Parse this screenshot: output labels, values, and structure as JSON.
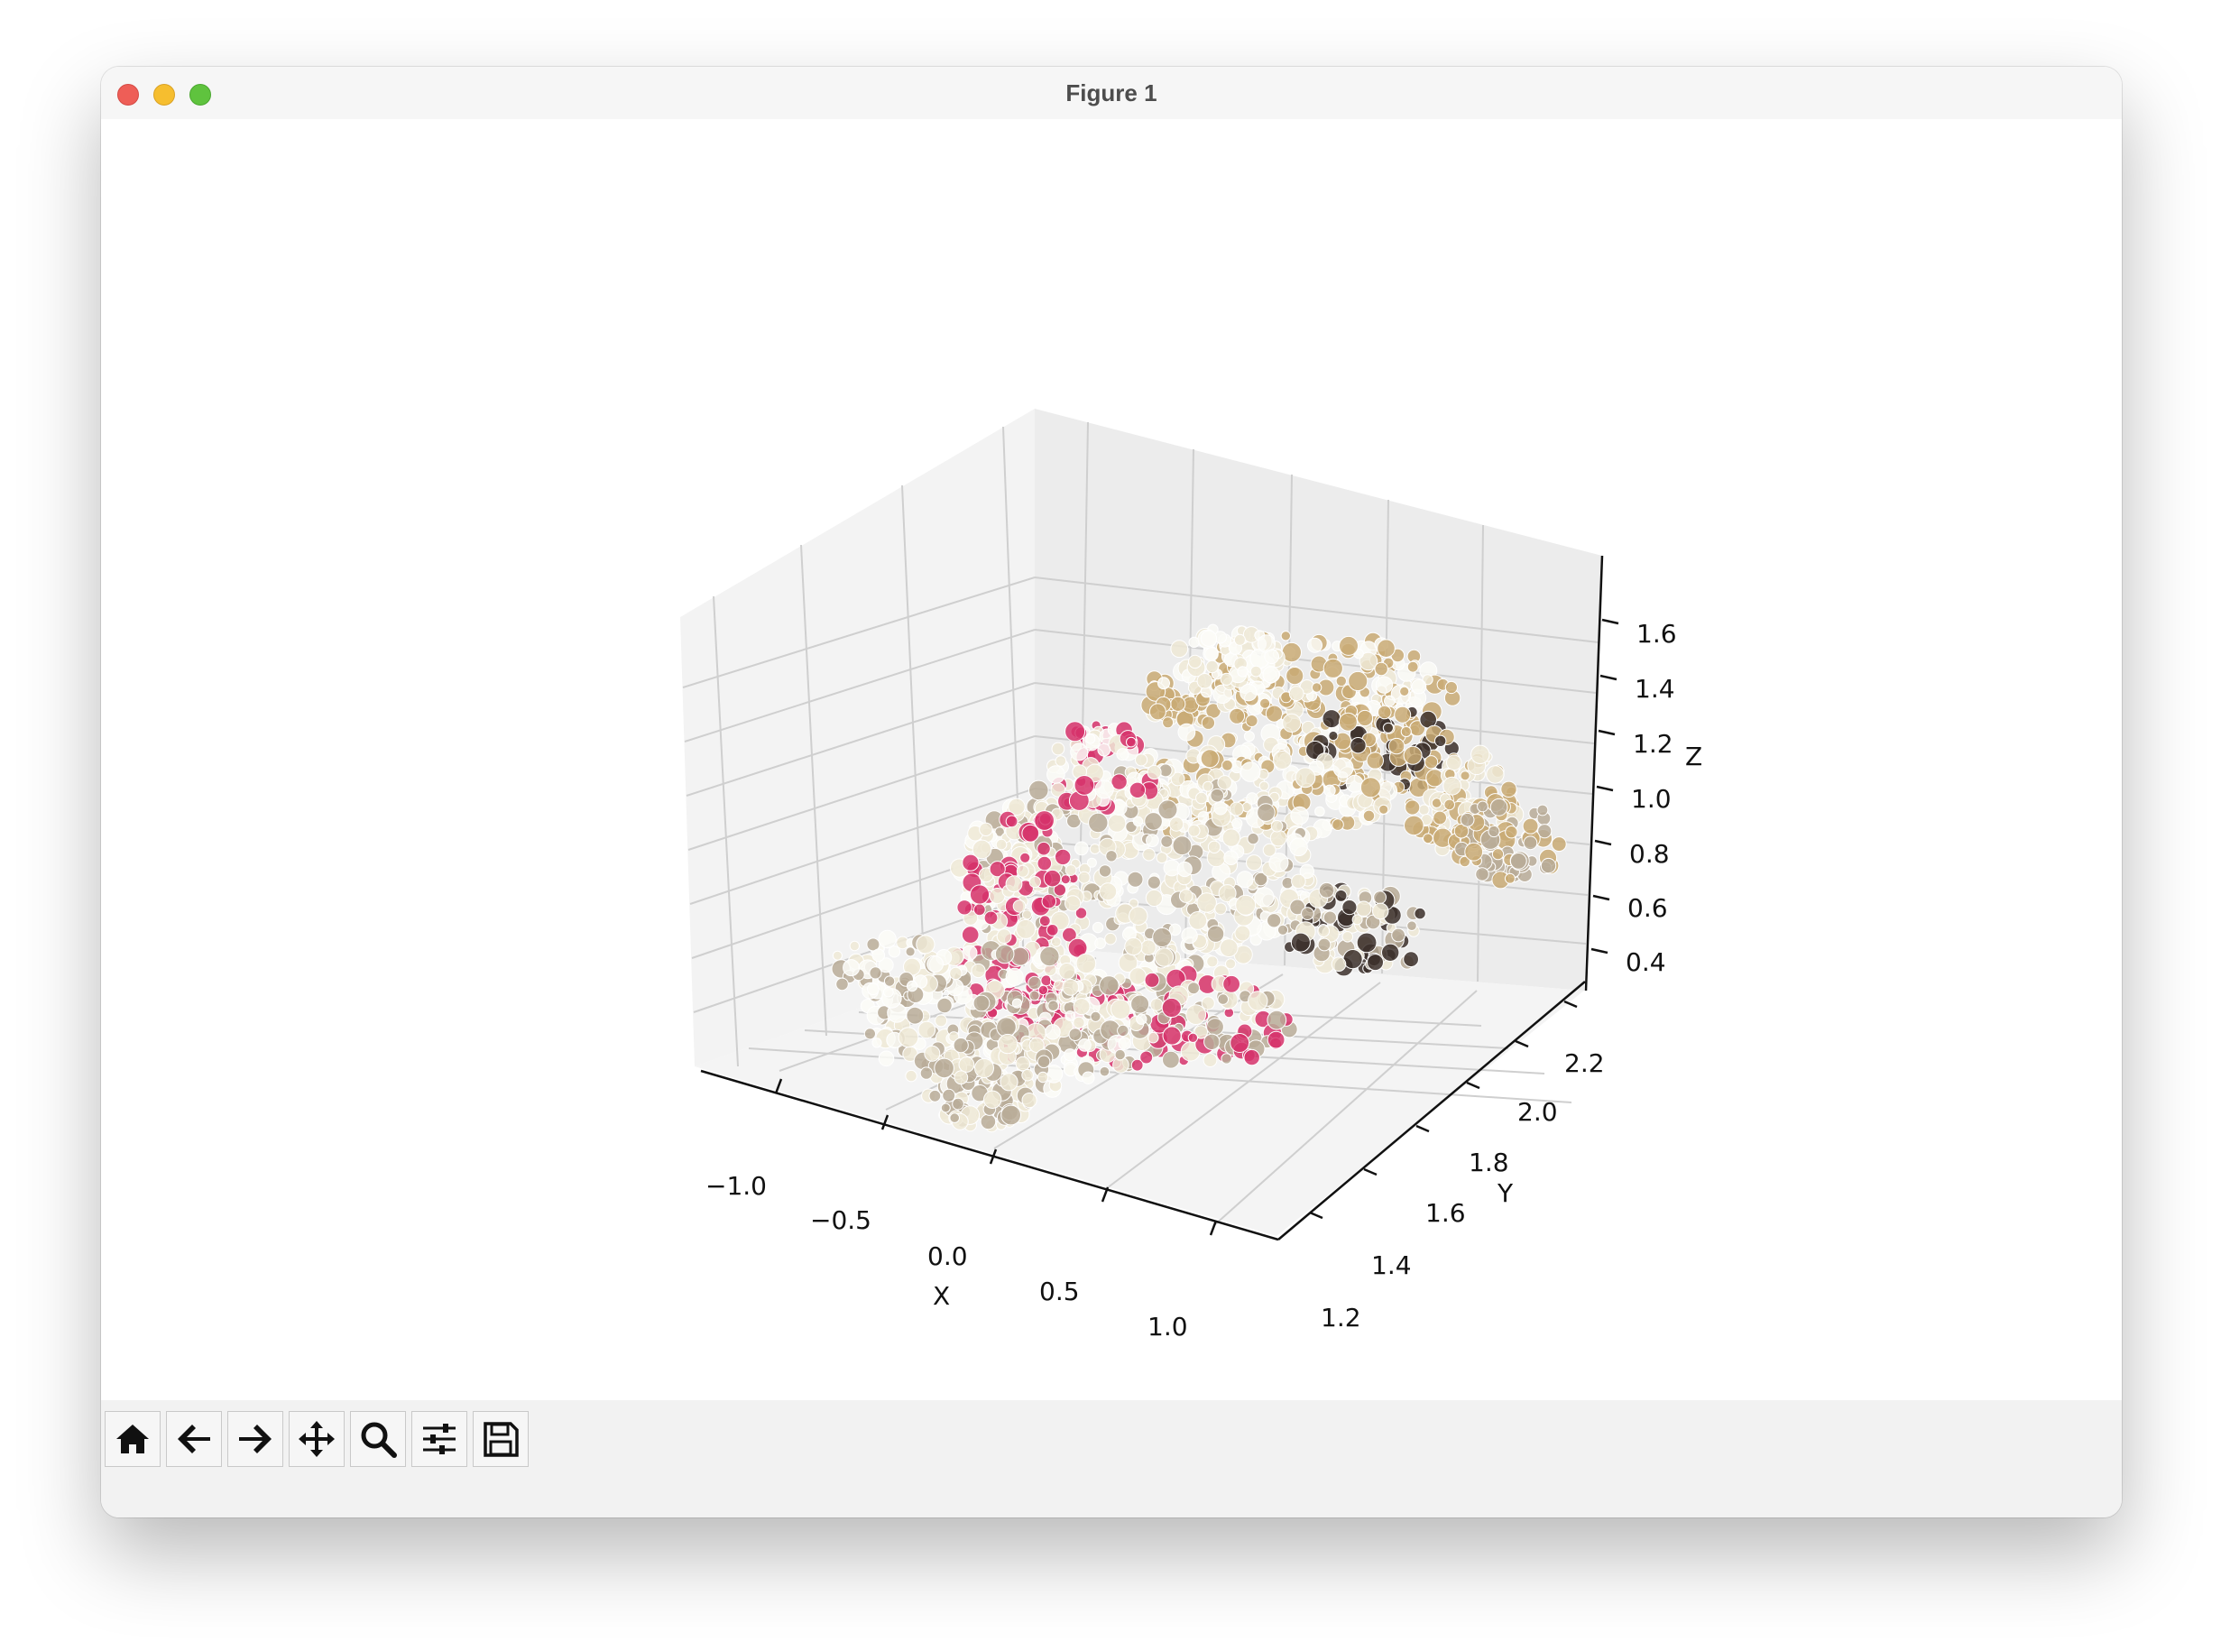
{
  "window": {
    "title": "Figure 1"
  },
  "toolbar": {
    "buttons": [
      {
        "icon": "home-icon"
      },
      {
        "icon": "arrow-left-icon"
      },
      {
        "icon": "arrow-right-icon"
      },
      {
        "icon": "move-icon"
      },
      {
        "icon": "zoom-icon"
      },
      {
        "icon": "sliders-icon"
      },
      {
        "icon": "save-icon"
      }
    ]
  },
  "chart_data": {
    "type": "scatter",
    "projection": "3d",
    "xlabel": "X",
    "ylabel": "Y",
    "zlabel": "Z",
    "x_ticks": [
      "−1.0",
      "−0.5",
      "0.0",
      "0.5",
      "1.0"
    ],
    "y_ticks": [
      "1.2",
      "1.4",
      "1.6",
      "1.8",
      "2.0",
      "2.2"
    ],
    "z_ticks": [
      "0.4",
      "0.6",
      "0.8",
      "1.0",
      "1.2",
      "1.4",
      "1.6"
    ],
    "xlim": [
      -1.25,
      1.25
    ],
    "ylim": [
      1.15,
      2.3
    ],
    "zlim": [
      0.3,
      1.75
    ],
    "grid": true,
    "colors": {
      "cream": "#efe9d6",
      "tan": "#c9aa74",
      "taupe": "#b9ac98",
      "pink": "#d6336b",
      "white": "#fbfbf7",
      "dark": "#3b2f2a"
    }
  }
}
